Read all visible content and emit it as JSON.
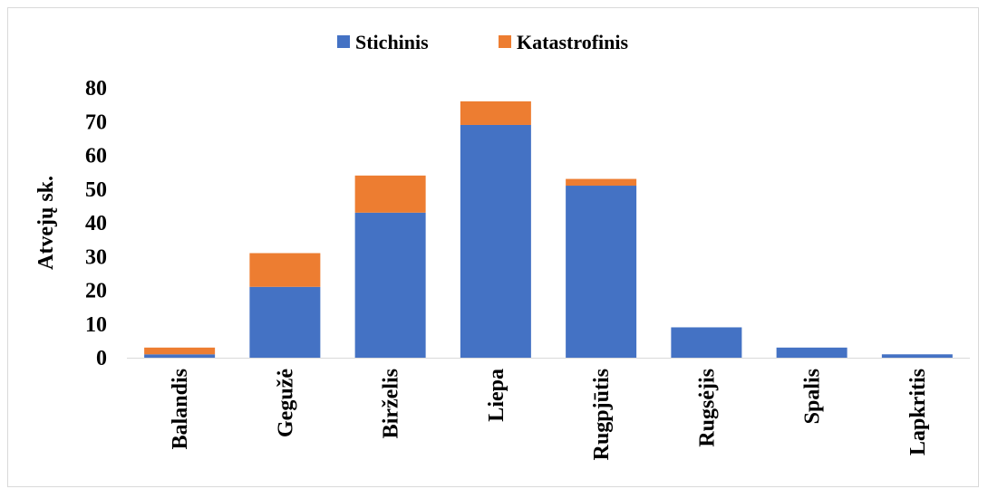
{
  "chart_data": {
    "type": "bar",
    "stacked": true,
    "categories": [
      "Balandis",
      "Gegužė",
      "Birželis",
      "Liepa",
      "Rugpjūtis",
      "Rugsėjis",
      "Spalis",
      "Lapkritis"
    ],
    "series": [
      {
        "name": "Stichinis",
        "color": "#4472c4",
        "values": [
          1,
          21,
          43,
          69,
          51,
          9,
          3,
          1
        ]
      },
      {
        "name": "Katastrofinis",
        "color": "#ed7d31",
        "values": [
          2,
          10,
          11,
          7,
          2,
          0,
          0,
          0
        ]
      }
    ],
    "ylabel": "Atvejų sk.",
    "ylim": [
      0,
      80
    ],
    "yticks": [
      0,
      10,
      20,
      30,
      40,
      50,
      60,
      70,
      80
    ],
    "grid": false,
    "legend": "top-center"
  }
}
